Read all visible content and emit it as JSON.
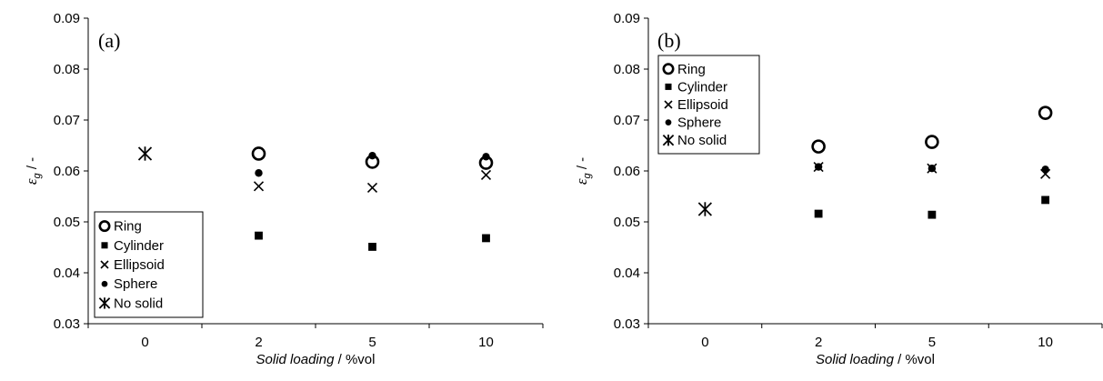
{
  "chart_data": [
    {
      "type": "scatter",
      "panel_label": "(a)",
      "categories": [
        "0",
        "2",
        "5",
        "10"
      ],
      "xlabel_italic": "Solid loading",
      "xlabel_unit": " / %vol",
      "ylabel_main": "ε",
      "ylabel_sub": "g",
      "ylabel_suffix": " / -",
      "ylim": [
        0.03,
        0.09
      ],
      "yticks": [
        "0.03",
        "0.04",
        "0.05",
        "0.06",
        "0.07",
        "0.08",
        "0.09"
      ],
      "legend_position": "bottom-left",
      "series": [
        {
          "name": "Ring",
          "marker": "open-circle",
          "values": [
            null,
            0.0634,
            0.0618,
            0.0616
          ]
        },
        {
          "name": "Cylinder",
          "marker": "filled-square",
          "values": [
            null,
            0.0473,
            0.0451,
            0.0468
          ]
        },
        {
          "name": "Ellipsoid",
          "marker": "x",
          "values": [
            null,
            0.057,
            0.0567,
            0.0592
          ]
        },
        {
          "name": "Sphere",
          "marker": "filled-circle",
          "values": [
            null,
            0.0596,
            0.063,
            0.0628
          ]
        },
        {
          "name": "No solid",
          "marker": "asterisk",
          "values": [
            0.0634,
            null,
            null,
            null
          ]
        }
      ]
    },
    {
      "type": "scatter",
      "panel_label": "(b)",
      "categories": [
        "0",
        "2",
        "5",
        "10"
      ],
      "xlabel_italic": "Solid loading",
      "xlabel_unit": " / %vol",
      "ylabel_main": "ε",
      "ylabel_sub": "g",
      "ylabel_suffix": " / -",
      "ylim": [
        0.03,
        0.09
      ],
      "yticks": [
        "0.03",
        "0.04",
        "0.05",
        "0.06",
        "0.07",
        "0.08",
        "0.09"
      ],
      "legend_position": "top-left",
      "series": [
        {
          "name": "Ring",
          "marker": "open-circle",
          "values": [
            null,
            0.0648,
            0.0657,
            0.0714
          ]
        },
        {
          "name": "Cylinder",
          "marker": "filled-square",
          "values": [
            null,
            0.0516,
            0.0514,
            0.0543
          ]
        },
        {
          "name": "Ellipsoid",
          "marker": "x",
          "values": [
            null,
            0.0608,
            0.0605,
            0.0594
          ]
        },
        {
          "name": "Sphere",
          "marker": "filled-circle",
          "values": [
            null,
            0.0608,
            0.0605,
            0.0603
          ]
        },
        {
          "name": "No solid",
          "marker": "asterisk",
          "values": [
            0.0525,
            null,
            null,
            null
          ]
        }
      ]
    }
  ]
}
